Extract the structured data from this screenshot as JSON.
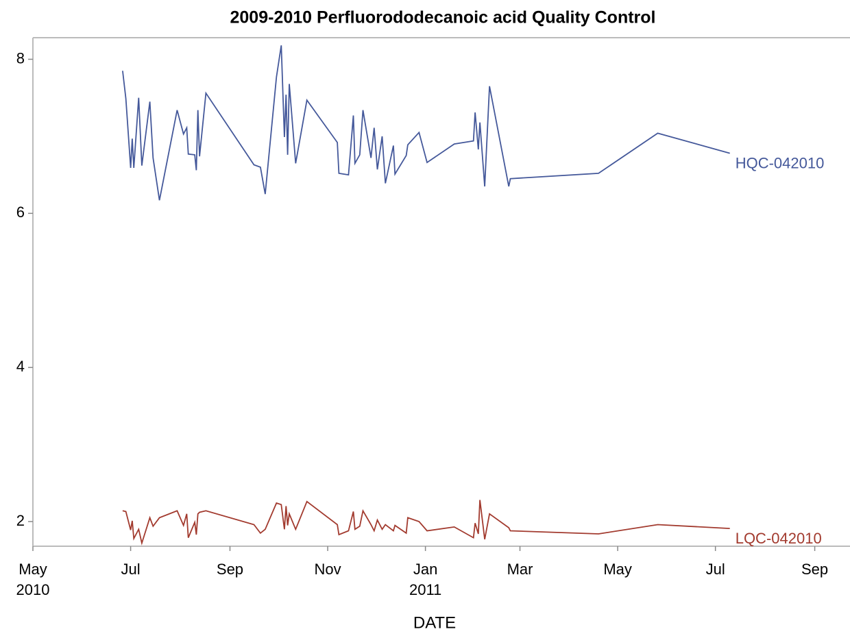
{
  "chart_data": {
    "type": "line",
    "title": "2009-2010 Perfluorododecanoic acid Quality Control",
    "x_label": "DATE",
    "x": [
      "2010-06-26",
      "2010-06-28",
      "2010-07-01",
      "2010-07-02",
      "2010-07-03",
      "2010-07-06",
      "2010-07-08",
      "2010-07-13",
      "2010-07-15",
      "2010-07-19",
      "2010-07-30",
      "2010-08-03",
      "2010-08-05",
      "2010-08-06",
      "2010-08-10",
      "2010-08-11",
      "2010-08-12",
      "2010-08-13",
      "2010-08-17",
      "2010-09-16",
      "2010-09-20",
      "2010-09-23",
      "2010-09-30",
      "2010-10-03",
      "2010-10-05",
      "2010-10-06",
      "2010-10-07",
      "2010-10-08",
      "2010-10-12",
      "2010-10-19",
      "2010-11-07",
      "2010-11-08",
      "2010-11-14",
      "2010-11-17",
      "2010-11-18",
      "2010-11-21",
      "2010-11-23",
      "2010-11-28",
      "2010-11-30",
      "2010-12-02",
      "2010-12-05",
      "2010-12-07",
      "2010-12-12",
      "2010-12-13",
      "2010-12-20",
      "2010-12-21",
      "2010-12-28",
      "2011-01-02",
      "2011-01-19",
      "2011-01-31",
      "2011-02-01",
      "2011-02-03",
      "2011-02-04",
      "2011-02-07",
      "2011-02-10",
      "2011-02-22",
      "2011-02-23",
      "2011-04-19",
      "2011-05-26",
      "2011-07-10"
    ],
    "series": [
      {
        "name": "HQC-042010",
        "color": "#44589a",
        "values": [
          7.85,
          7.49,
          6.59,
          6.97,
          6.59,
          7.5,
          6.62,
          7.45,
          6.72,
          6.17,
          7.34,
          7.03,
          7.11,
          6.77,
          6.76,
          6.56,
          7.34,
          6.74,
          7.56,
          6.63,
          6.6,
          6.25,
          7.77,
          8.18,
          6.99,
          7.54,
          6.76,
          7.68,
          6.65,
          7.47,
          6.92,
          6.52,
          6.5,
          7.27,
          6.65,
          6.76,
          7.34,
          6.72,
          7.11,
          6.57,
          7.0,
          6.39,
          6.88,
          6.51,
          6.75,
          6.89,
          7.05,
          6.66,
          6.9,
          6.94,
          7.31,
          6.83,
          7.18,
          6.35,
          7.65,
          6.35,
          6.45,
          6.52,
          7.04,
          6.78
        ]
      },
      {
        "name": "LQC-042010",
        "color": "#a23a2e",
        "values": [
          2.14,
          2.13,
          1.89,
          2.01,
          1.78,
          1.9,
          1.72,
          2.05,
          1.94,
          2.05,
          2.14,
          1.95,
          2.1,
          1.79,
          1.99,
          1.83,
          2.1,
          2.12,
          2.14,
          1.96,
          1.85,
          1.9,
          2.24,
          2.22,
          1.9,
          2.2,
          1.95,
          2.1,
          1.9,
          2.26,
          1.96,
          1.83,
          1.88,
          2.13,
          1.9,
          1.94,
          2.14,
          1.96,
          1.88,
          2.02,
          1.9,
          1.96,
          1.88,
          1.95,
          1.85,
          2.05,
          2.0,
          1.88,
          1.93,
          1.79,
          1.98,
          1.84,
          2.28,
          1.77,
          2.1,
          1.92,
          1.88,
          1.84,
          1.96,
          1.91
        ]
      }
    ],
    "xlim": [
      "2010-05-01",
      "2011-09-23"
    ],
    "xticks": [
      {
        "value": "2010-05-01",
        "label": "May\n2010"
      },
      {
        "value": "2010-07-01",
        "label": "Jul"
      },
      {
        "value": "2010-09-01",
        "label": "Sep"
      },
      {
        "value": "2010-11-01",
        "label": "Nov"
      },
      {
        "value": "2011-01-01",
        "label": "Jan\n2011"
      },
      {
        "value": "2011-03-01",
        "label": "Mar"
      },
      {
        "value": "2011-05-01",
        "label": "May"
      },
      {
        "value": "2011-07-01",
        "label": "Jul"
      },
      {
        "value": "2011-09-01",
        "label": "Sep"
      }
    ],
    "ylim": [
      1.68,
      8.28
    ],
    "yticks": [
      2,
      4,
      6,
      8
    ]
  }
}
